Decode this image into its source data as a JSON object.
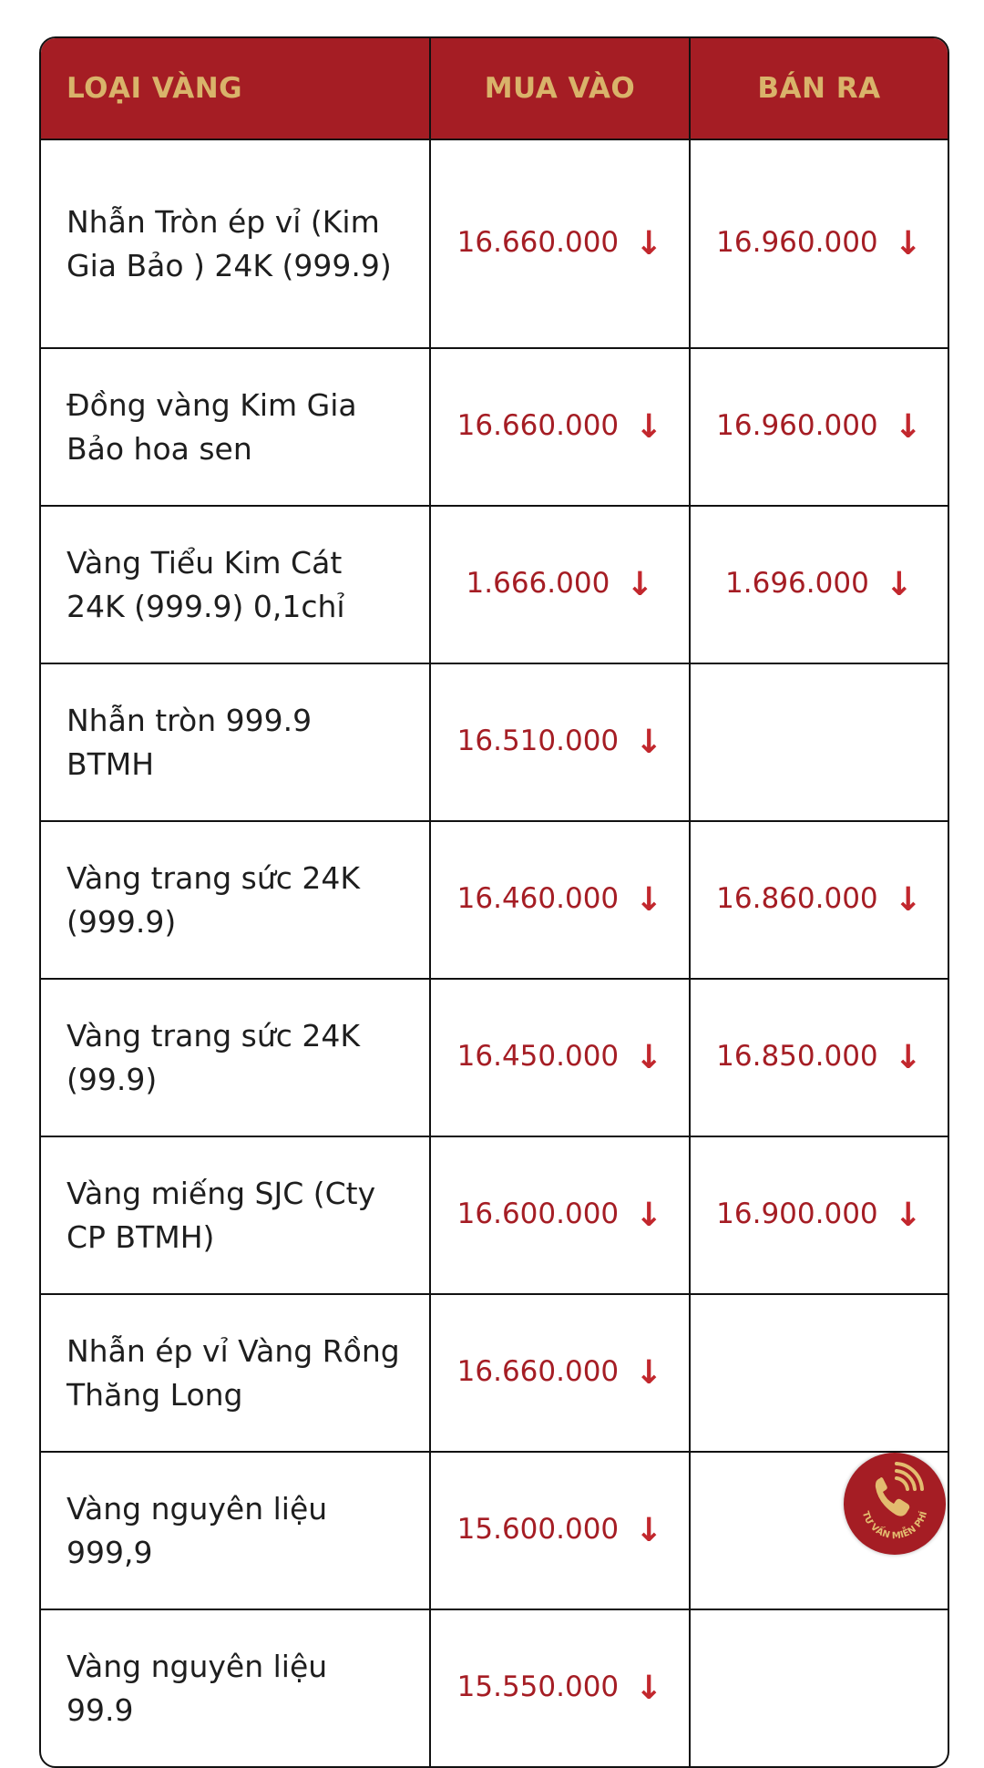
{
  "table": {
    "headers": [
      "LOẠI VÀNG",
      "MUA VÀO",
      "BÁN RA"
    ],
    "rows": [
      {
        "name": "Nhẫn Tròn ép vỉ (Kim Gia Bảo ) 24K (999.9)",
        "buy": "16.660.000",
        "sell": "16.960.000"
      },
      {
        "name": "Đồng vàng Kim Gia Bảo hoa sen",
        "buy": "16.660.000",
        "sell": "16.960.000"
      },
      {
        "name": "Vàng Tiểu Kim Cát 24K (999.9) 0,1chỉ",
        "buy": "1.666.000",
        "sell": "1.696.000"
      },
      {
        "name": "Nhẫn tròn 999.9 BTMH",
        "buy": "16.510.000",
        "sell": ""
      },
      {
        "name": "Vàng trang sức 24K (999.9)",
        "buy": "16.460.000",
        "sell": "16.860.000"
      },
      {
        "name": "Vàng trang sức 24K (99.9)",
        "buy": "16.450.000",
        "sell": "16.850.000"
      },
      {
        "name": "Vàng miếng SJC (Cty CP BTMH)",
        "buy": "16.600.000",
        "sell": "16.900.000"
      },
      {
        "name": "Nhẫn ép vỉ Vàng Rồng Thăng Long",
        "buy": "16.660.000",
        "sell": ""
      },
      {
        "name": "Vàng nguyên liệu 999,9",
        "buy": "15.600.000",
        "sell": ""
      },
      {
        "name": "Vàng nguyên liệu 99.9",
        "buy": "15.550.000",
        "sell": ""
      }
    ],
    "trend_icon": "arrow-down-icon",
    "arrow_glyph": "↓"
  },
  "call_button": {
    "label": "TƯ VẤN MIỄN PHÍ",
    "icon": "phone-icon"
  },
  "colors": {
    "header_bg": "#a51d24",
    "header_text": "#d9b36a",
    "price": "#a51d24"
  }
}
